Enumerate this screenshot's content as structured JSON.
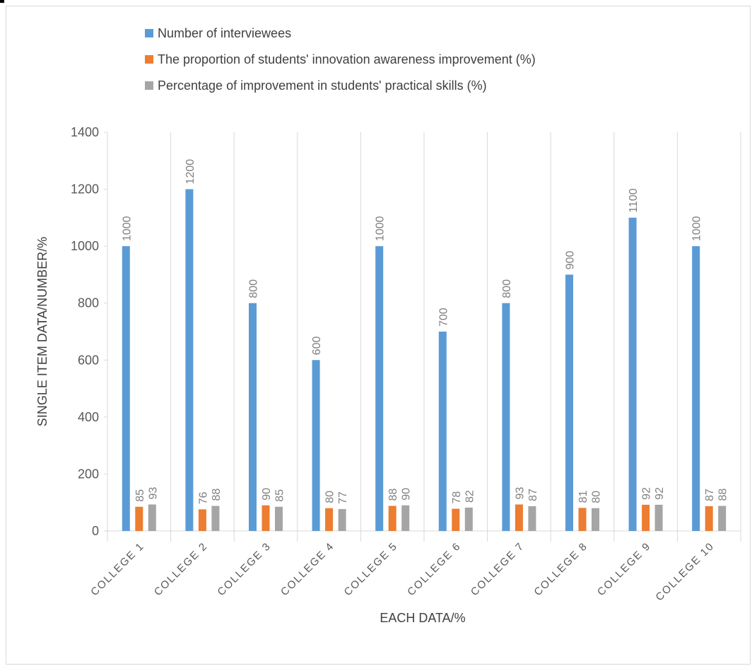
{
  "chart_data": {
    "type": "bar",
    "categories": [
      "COLLEGE 1",
      "COLLEGE 2",
      "COLLEGE 3",
      "COLLEGE 4",
      "COLLEGE 5",
      "COLLEGE 6",
      "COLLEGE 7",
      "COLLEGE 8",
      "COLLEGE 9",
      "COLLEGE 10"
    ],
    "series": [
      {
        "name": "Number of interviewees",
        "color": "#5b9bd5",
        "values": [
          1000,
          1200,
          800,
          600,
          1000,
          700,
          800,
          900,
          1100,
          1000
        ]
      },
      {
        "name": "The proportion of students' innovation awareness improvement (%)",
        "color": "#ed7d31",
        "values": [
          85,
          76,
          90,
          80,
          88,
          78,
          93,
          81,
          92,
          87
        ]
      },
      {
        "name": "Percentage of improvement in students' practical skills (%)",
        "color": "#a5a5a5",
        "values": [
          93,
          88,
          85,
          77,
          90,
          82,
          87,
          80,
          92,
          88
        ]
      }
    ],
    "title": "",
    "xlabel": "EACH DATA/%",
    "ylabel": "SINGLE ITEM DATA/NUMBER/%",
    "ylim": [
      0,
      1400
    ],
    "yticks": [
      0,
      200,
      400,
      600,
      800,
      1000,
      1200,
      1400
    ],
    "grid": "vertical category separators",
    "legend_position": "top"
  }
}
